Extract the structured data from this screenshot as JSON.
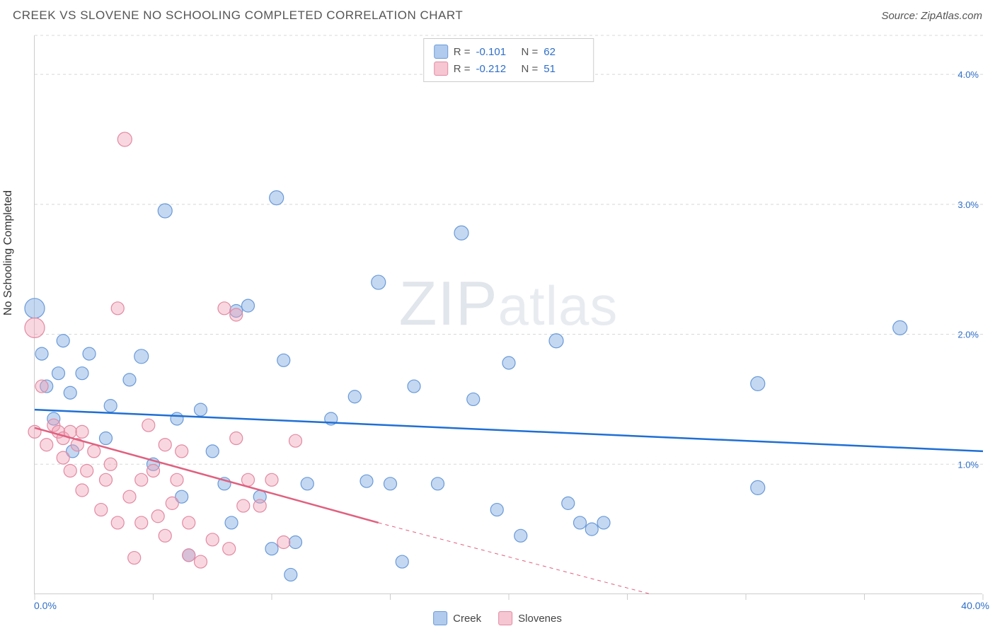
{
  "title": "CREEK VS SLOVENE NO SCHOOLING COMPLETED CORRELATION CHART",
  "source": "Source: ZipAtlas.com",
  "y_axis_title": "No Schooling Completed",
  "watermark": {
    "big": "ZIP",
    "small": "atlas"
  },
  "chart": {
    "type": "scatter",
    "xlim": [
      0,
      40
    ],
    "ylim": [
      0,
      4.3
    ],
    "x_tick_positions": [
      0,
      5,
      10,
      15,
      20,
      25,
      30,
      35,
      40
    ],
    "x_labels_shown": {
      "start": "0.0%",
      "end": "40.0%"
    },
    "y_grid": [
      1.0,
      2.0,
      3.0,
      4.0,
      4.3
    ],
    "y_labels": [
      "1.0%",
      "2.0%",
      "3.0%",
      "4.0%"
    ],
    "background_color": "#ffffff",
    "grid_color": "#d8d8d8",
    "axis_color": "#cccccc",
    "label_color": "#2f6fc8",
    "series": [
      {
        "name": "Creek",
        "color_fill": "rgba(124,169,227,0.45)",
        "color_stroke": "#6a9ad8",
        "line_color": "#1f6fd4",
        "line_width": 2.5,
        "R": "-0.101",
        "N": "62",
        "trend": {
          "x1": 0,
          "y1": 1.42,
          "x2": 40,
          "y2": 1.1,
          "dash_after_x": 40
        },
        "points": [
          {
            "x": 0.0,
            "y": 2.2,
            "r": 14
          },
          {
            "x": 0.3,
            "y": 1.85,
            "r": 9
          },
          {
            "x": 0.5,
            "y": 1.6,
            "r": 9
          },
          {
            "x": 0.8,
            "y": 1.35,
            "r": 9
          },
          {
            "x": 1.0,
            "y": 1.7,
            "r": 9
          },
          {
            "x": 1.2,
            "y": 1.95,
            "r": 9
          },
          {
            "x": 1.5,
            "y": 1.55,
            "r": 9
          },
          {
            "x": 1.6,
            "y": 1.1,
            "r": 9
          },
          {
            "x": 2.0,
            "y": 1.7,
            "r": 9
          },
          {
            "x": 2.3,
            "y": 1.85,
            "r": 9
          },
          {
            "x": 3.0,
            "y": 1.2,
            "r": 9
          },
          {
            "x": 3.2,
            "y": 1.45,
            "r": 9
          },
          {
            "x": 4.0,
            "y": 1.65,
            "r": 9
          },
          {
            "x": 4.5,
            "y": 1.83,
            "r": 10
          },
          {
            "x": 5.0,
            "y": 1.0,
            "r": 9
          },
          {
            "x": 5.5,
            "y": 2.95,
            "r": 10
          },
          {
            "x": 6.0,
            "y": 1.35,
            "r": 9
          },
          {
            "x": 6.2,
            "y": 0.75,
            "r": 9
          },
          {
            "x": 6.5,
            "y": 0.3,
            "r": 9
          },
          {
            "x": 7.0,
            "y": 1.42,
            "r": 9
          },
          {
            "x": 7.5,
            "y": 1.1,
            "r": 9
          },
          {
            "x": 8.0,
            "y": 0.85,
            "r": 9
          },
          {
            "x": 8.3,
            "y": 0.55,
            "r": 9
          },
          {
            "x": 8.5,
            "y": 2.18,
            "r": 9
          },
          {
            "x": 9.0,
            "y": 2.22,
            "r": 9
          },
          {
            "x": 9.5,
            "y": 0.75,
            "r": 9
          },
          {
            "x": 10.0,
            "y": 0.35,
            "r": 9
          },
          {
            "x": 10.2,
            "y": 3.05,
            "r": 10
          },
          {
            "x": 10.5,
            "y": 1.8,
            "r": 9
          },
          {
            "x": 10.8,
            "y": 0.15,
            "r": 9
          },
          {
            "x": 11.0,
            "y": 0.4,
            "r": 9
          },
          {
            "x": 11.5,
            "y": 0.85,
            "r": 9
          },
          {
            "x": 12.5,
            "y": 1.35,
            "r": 9
          },
          {
            "x": 13.5,
            "y": 1.52,
            "r": 9
          },
          {
            "x": 14.0,
            "y": 0.87,
            "r": 9
          },
          {
            "x": 14.5,
            "y": 2.4,
            "r": 10
          },
          {
            "x": 15.0,
            "y": 0.85,
            "r": 9
          },
          {
            "x": 15.5,
            "y": 0.25,
            "r": 9
          },
          {
            "x": 16.0,
            "y": 1.6,
            "r": 9
          },
          {
            "x": 17.0,
            "y": 0.85,
            "r": 9
          },
          {
            "x": 18.0,
            "y": 2.78,
            "r": 10
          },
          {
            "x": 18.5,
            "y": 1.5,
            "r": 9
          },
          {
            "x": 19.5,
            "y": 0.65,
            "r": 9
          },
          {
            "x": 20.0,
            "y": 1.78,
            "r": 9
          },
          {
            "x": 20.5,
            "y": 0.45,
            "r": 9
          },
          {
            "x": 22.0,
            "y": 1.95,
            "r": 10
          },
          {
            "x": 22.5,
            "y": 0.7,
            "r": 9
          },
          {
            "x": 23.0,
            "y": 0.55,
            "r": 9
          },
          {
            "x": 23.5,
            "y": 0.5,
            "r": 9
          },
          {
            "x": 24.0,
            "y": 0.55,
            "r": 9
          },
          {
            "x": 30.5,
            "y": 1.62,
            "r": 10
          },
          {
            "x": 30.5,
            "y": 0.82,
            "r": 10
          },
          {
            "x": 36.5,
            "y": 2.05,
            "r": 10
          }
        ]
      },
      {
        "name": "Slovenes",
        "color_fill": "rgba(240,160,180,0.42)",
        "color_stroke": "#e28aa3",
        "line_color": "#e0607f",
        "line_width": 2.5,
        "R": "-0.212",
        "N": "51",
        "trend": {
          "x1": 0,
          "y1": 1.28,
          "x2": 14.5,
          "y2": 0.55,
          "dash_to_x": 26,
          "dash_to_y": 0
        },
        "points": [
          {
            "x": 0.0,
            "y": 2.05,
            "r": 14
          },
          {
            "x": 0.0,
            "y": 1.25,
            "r": 9
          },
          {
            "x": 0.3,
            "y": 1.6,
            "r": 9
          },
          {
            "x": 0.5,
            "y": 1.15,
            "r": 9
          },
          {
            "x": 0.8,
            "y": 1.3,
            "r": 9
          },
          {
            "x": 1.0,
            "y": 1.25,
            "r": 9
          },
          {
            "x": 1.2,
            "y": 1.05,
            "r": 9
          },
          {
            "x": 1.2,
            "y": 1.2,
            "r": 9
          },
          {
            "x": 1.5,
            "y": 0.95,
            "r": 9
          },
          {
            "x": 1.5,
            "y": 1.25,
            "r": 9
          },
          {
            "x": 1.8,
            "y": 1.15,
            "r": 9
          },
          {
            "x": 2.0,
            "y": 1.25,
            "r": 9
          },
          {
            "x": 2.0,
            "y": 0.8,
            "r": 9
          },
          {
            "x": 2.2,
            "y": 0.95,
            "r": 9
          },
          {
            "x": 2.5,
            "y": 1.1,
            "r": 9
          },
          {
            "x": 2.8,
            "y": 0.65,
            "r": 9
          },
          {
            "x": 3.0,
            "y": 0.88,
            "r": 9
          },
          {
            "x": 3.2,
            "y": 1.0,
            "r": 9
          },
          {
            "x": 3.5,
            "y": 0.55,
            "r": 9
          },
          {
            "x": 3.5,
            "y": 2.2,
            "r": 9
          },
          {
            "x": 3.8,
            "y": 3.5,
            "r": 10
          },
          {
            "x": 4.0,
            "y": 0.75,
            "r": 9
          },
          {
            "x": 4.2,
            "y": 0.28,
            "r": 9
          },
          {
            "x": 4.5,
            "y": 0.55,
            "r": 9
          },
          {
            "x": 4.5,
            "y": 0.88,
            "r": 9
          },
          {
            "x": 4.8,
            "y": 1.3,
            "r": 9
          },
          {
            "x": 5.0,
            "y": 0.95,
            "r": 9
          },
          {
            "x": 5.2,
            "y": 0.6,
            "r": 9
          },
          {
            "x": 5.5,
            "y": 1.15,
            "r": 9
          },
          {
            "x": 5.5,
            "y": 0.45,
            "r": 9
          },
          {
            "x": 5.8,
            "y": 0.7,
            "r": 9
          },
          {
            "x": 6.0,
            "y": 0.88,
            "r": 9
          },
          {
            "x": 6.2,
            "y": 1.1,
            "r": 9
          },
          {
            "x": 6.5,
            "y": 0.3,
            "r": 9
          },
          {
            "x": 6.5,
            "y": 0.55,
            "r": 9
          },
          {
            "x": 7.0,
            "y": 0.25,
            "r": 9
          },
          {
            "x": 7.5,
            "y": 0.42,
            "r": 9
          },
          {
            "x": 8.0,
            "y": 2.2,
            "r": 9
          },
          {
            "x": 8.2,
            "y": 0.35,
            "r": 9
          },
          {
            "x": 8.5,
            "y": 1.2,
            "r": 9
          },
          {
            "x": 8.5,
            "y": 2.15,
            "r": 9
          },
          {
            "x": 8.8,
            "y": 0.68,
            "r": 9
          },
          {
            "x": 9.0,
            "y": 0.88,
            "r": 9
          },
          {
            "x": 9.5,
            "y": 0.68,
            "r": 9
          },
          {
            "x": 10.0,
            "y": 0.88,
            "r": 9
          },
          {
            "x": 10.5,
            "y": 0.4,
            "r": 9
          },
          {
            "x": 11.0,
            "y": 1.18,
            "r": 9
          }
        ]
      }
    ]
  },
  "legend_top": {
    "rows": [
      {
        "swatch_fill": "rgba(124,169,227,0.6)",
        "swatch_stroke": "#6a9ad8",
        "r_label": "R =",
        "r_val": "-0.101",
        "n_label": "N =",
        "n_val": "62"
      },
      {
        "swatch_fill": "rgba(240,160,180,0.6)",
        "swatch_stroke": "#e28aa3",
        "r_label": "R =",
        "r_val": "-0.212",
        "n_label": "N =",
        "n_val": "51"
      }
    ]
  },
  "legend_bottom": {
    "items": [
      {
        "swatch_fill": "rgba(124,169,227,0.6)",
        "swatch_stroke": "#6a9ad8",
        "label": "Creek"
      },
      {
        "swatch_fill": "rgba(240,160,180,0.6)",
        "swatch_stroke": "#e28aa3",
        "label": "Slovenes"
      }
    ]
  }
}
